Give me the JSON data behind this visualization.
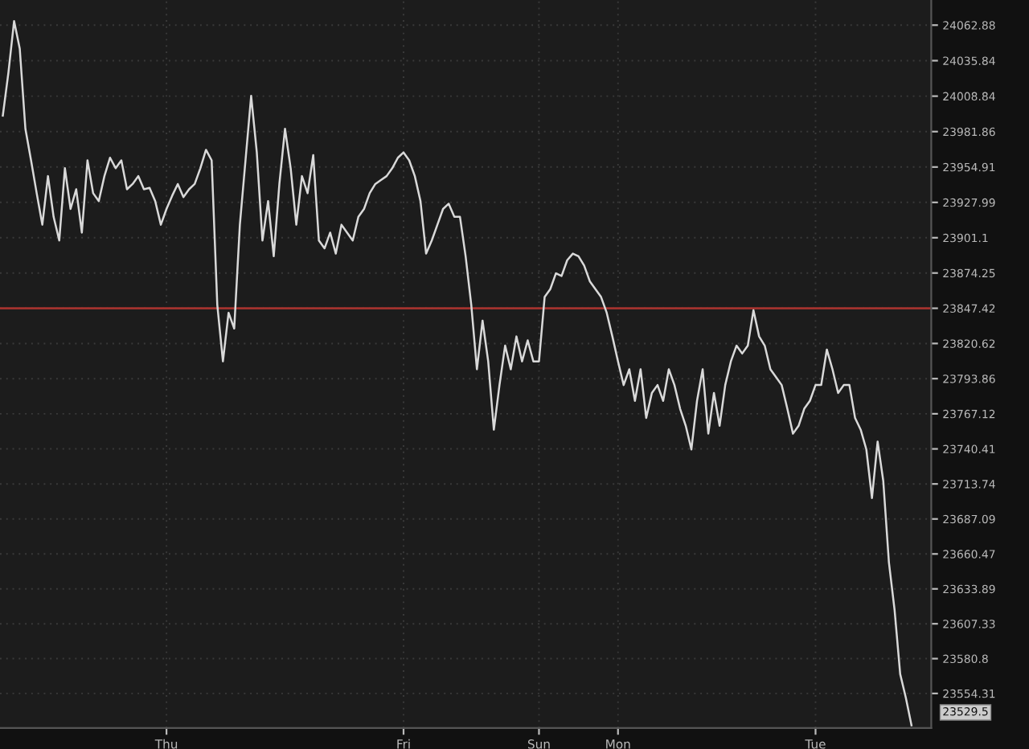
{
  "chart_data": {
    "type": "line",
    "categories": [
      null,
      null,
      null,
      null,
      null,
      null,
      null,
      null,
      null,
      null,
      null,
      null,
      null,
      null,
      null,
      null,
      null,
      null,
      null,
      null,
      null,
      null,
      null,
      null,
      null,
      null,
      null,
      null,
      null,
      "Thu",
      null,
      null,
      null,
      null,
      null,
      null,
      null,
      null,
      null,
      null,
      null,
      null,
      null,
      null,
      null,
      null,
      null,
      null,
      null,
      null,
      null,
      null,
      null,
      null,
      null,
      null,
      null,
      null,
      null,
      null,
      null,
      null,
      null,
      null,
      null,
      null,
      null,
      null,
      null,
      null,
      null,
      "Fri",
      null,
      null,
      null,
      null,
      null,
      null,
      null,
      null,
      null,
      null,
      null,
      null,
      null,
      null,
      null,
      null,
      null,
      null,
      null,
      null,
      null,
      null,
      null,
      "Sun",
      null,
      null,
      null,
      null,
      null,
      null,
      null,
      null,
      null,
      null,
      null,
      null,
      null,
      "Mon",
      null,
      null,
      null,
      null,
      null,
      null,
      null,
      null,
      null,
      null,
      null,
      null,
      null,
      null,
      null,
      null,
      null,
      null,
      null,
      null,
      null,
      null,
      null,
      null,
      null,
      null,
      null,
      null,
      null,
      null,
      null,
      null,
      null,
      null,
      "Tue",
      null,
      null,
      null,
      null,
      null,
      null,
      null,
      null,
      null,
      null,
      null,
      null,
      null,
      null,
      null,
      null,
      null
    ],
    "series": [
      {
        "color": "#d9d9d9",
        "values": [
          23994,
          24027,
          24066,
          24045,
          23984,
          23960,
          23935,
          23911,
          23948,
          23917,
          23899,
          23954,
          23923,
          23938,
          23905,
          23960,
          23935,
          23929,
          23948,
          23962,
          23954,
          23960,
          23938,
          23942,
          23948,
          23938,
          23939,
          23929,
          23911,
          23923,
          23933,
          23942,
          23932,
          23938,
          23942,
          23954,
          23968,
          23960,
          23850,
          23807,
          23844,
          23832,
          23911,
          23960,
          24009,
          23966,
          23899,
          23929,
          23887,
          23942,
          23984,
          23954,
          23911,
          23948,
          23935,
          23964,
          23899,
          23893,
          23905,
          23889,
          23911,
          23905,
          23899,
          23917,
          23923,
          23935,
          23942,
          23945,
          23948,
          23954,
          23962,
          23966,
          23960,
          23948,
          23929,
          23889,
          23899,
          23911,
          23923,
          23927,
          23917,
          23917,
          23887,
          23850,
          23801,
          23838,
          23807,
          23755,
          23789,
          23819,
          23801,
          23826,
          23807,
          23823,
          23807,
          23807,
          23856,
          23862,
          23874,
          23872,
          23884,
          23889,
          23887,
          23880,
          23868,
          23862,
          23856,
          23844,
          23826,
          23807,
          23789,
          23801,
          23777,
          23801,
          23764,
          23783,
          23789,
          23777,
          23801,
          23789,
          23771,
          23758,
          23740,
          23777,
          23801,
          23752,
          23783,
          23758,
          23789,
          23807,
          23819,
          23813,
          23819,
          23846,
          23826,
          23819,
          23801,
          23795,
          23789,
          23771,
          23752,
          23758,
          23771,
          23777,
          23789,
          23789,
          23816,
          23801,
          23783,
          23789,
          23789,
          23764,
          23755,
          23740,
          23703,
          23746,
          23716,
          23654,
          23618,
          23569,
          23551,
          23530
        ]
      }
    ],
    "ylim": [
      23528,
      24082
    ],
    "yticks": [
      {
        "value": 24062.88,
        "label": "24062.88"
      },
      {
        "value": 24035.84,
        "label": "24035.84"
      },
      {
        "value": 24008.84,
        "label": "24008.84"
      },
      {
        "value": 23981.86,
        "label": "23981.86"
      },
      {
        "value": 23954.91,
        "label": "23954.91"
      },
      {
        "value": 23927.99,
        "label": "23927.99"
      },
      {
        "value": 23901.1,
        "label": "23901.1"
      },
      {
        "value": 23874.25,
        "label": "23874.25"
      },
      {
        "value": 23847.42,
        "label": "23847.42"
      },
      {
        "value": 23820.62,
        "label": "23820.62"
      },
      {
        "value": 23793.86,
        "label": "23793.86"
      },
      {
        "value": 23767.12,
        "label": "23767.12"
      },
      {
        "value": 23740.41,
        "label": "23740.41"
      },
      {
        "value": 23713.74,
        "label": "23713.74"
      },
      {
        "value": 23687.09,
        "label": "23687.09"
      },
      {
        "value": 23660.47,
        "label": "23660.47"
      },
      {
        "value": 23633.89,
        "label": "23633.89"
      },
      {
        "value": 23607.33,
        "label": "23607.33"
      },
      {
        "value": 23580.8,
        "label": "23580.8"
      },
      {
        "value": 23554.31,
        "label": "23554.31"
      }
    ],
    "ref_lines": [
      {
        "axis": "y",
        "value": 23847.42,
        "color": "#a3322e"
      }
    ],
    "annotations": [
      "23529.5"
    ],
    "grid": true,
    "legend": false,
    "marker": "none",
    "line_style": "solid"
  }
}
